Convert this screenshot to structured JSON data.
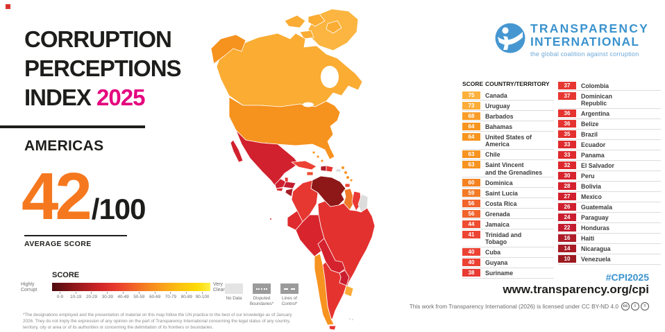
{
  "header": {
    "title_line1": "CORRUPTION",
    "title_line2": "PERCEPTIONS",
    "title_line3": "INDEX",
    "year": "2025",
    "region": "AMERICAS",
    "average_value": "42",
    "average_total": "/100",
    "average_label": "AVERAGE SCORE"
  },
  "legend": {
    "title": "SCORE",
    "left_label": "Highly\nCorrupt",
    "right_label": "Very\nClean",
    "ticks": [
      "0-9",
      "10-19",
      "20-29",
      "30-39",
      "40-49",
      "50-59",
      "60-69",
      "70-79",
      "80-89",
      "90-100"
    ],
    "no_data_label": "No Data",
    "disputed_label": "Disputed\nBoundaries*",
    "lines_label": "Lines of\nControl*"
  },
  "footnote": "*The designations employed and the presentation of material on this map follow the UN practice to the best of our knowledge as of January 2026. They do not imply the expression of any opinion on the part of Transparency International concerning the legal status of any country, territory, city or area or of its authorities or concerning the delimitation of its frontiers or boundaries.",
  "logo": {
    "name_line1": "TRANSPARENCY",
    "name_line2": "INTERNATIONAL",
    "tagline": "the global coalition against corruption"
  },
  "footer": {
    "hashtag": "#CPI2025",
    "url": "www.transparency.org/cpi",
    "license": "This work from Transparency International (2026) is licensed under CC BY-ND 4.0",
    "license_icons": [
      "cc",
      "i",
      "="
    ]
  },
  "table": {
    "score_header": "SCORE",
    "country_header": "COUNTRY/TERRITORY",
    "column1": [
      {
        "score": "75",
        "name": "Canada",
        "color": "#FCB13C"
      },
      {
        "score": "73",
        "name": "Uruguay",
        "color": "#FBAC39"
      },
      {
        "score": "68",
        "name": "Barbados",
        "color": "#F99D28"
      },
      {
        "score": "64",
        "name": "Bahamas",
        "color": "#F8951F"
      },
      {
        "score": "64",
        "name": "United States of\nAmerica",
        "color": "#F8951F"
      },
      {
        "score": "63",
        "name": "Chile",
        "color": "#F79320"
      },
      {
        "score": "63",
        "name": "Saint Vincent\nand the Grenadines",
        "color": "#F79320"
      },
      {
        "score": "60",
        "name": "Dominica",
        "color": "#F58220"
      },
      {
        "score": "59",
        "name": "Saint Lucia",
        "color": "#F37B26"
      },
      {
        "score": "56",
        "name": "Costa Rica",
        "color": "#F1642B"
      },
      {
        "score": "56",
        "name": "Grenada",
        "color": "#F1642B"
      },
      {
        "score": "44",
        "name": "Jamaica",
        "color": "#EE4D31"
      },
      {
        "score": "41",
        "name": "Trinidad and\nTobago",
        "color": "#ED4533"
      },
      {
        "score": "40",
        "name": "Cuba",
        "color": "#EC4234"
      },
      {
        "score": "40",
        "name": "Guyana",
        "color": "#EC4234"
      },
      {
        "score": "38",
        "name": "Suriname",
        "color": "#E93A33"
      }
    ],
    "column2": [
      {
        "score": "37",
        "name": "Colombia",
        "color": "#E73731"
      },
      {
        "score": "37",
        "name": "Dominican\nRepublic",
        "color": "#E73731"
      },
      {
        "score": "36",
        "name": "Argentina",
        "color": "#E53430"
      },
      {
        "score": "36",
        "name": "Belize",
        "color": "#E53430"
      },
      {
        "score": "35",
        "name": "Brazil",
        "color": "#E3312F"
      },
      {
        "score": "33",
        "name": "Ecuador",
        "color": "#DF2B2E"
      },
      {
        "score": "33",
        "name": "Panama",
        "color": "#DF2B2E"
      },
      {
        "score": "32",
        "name": "El Salvador",
        "color": "#DD282D"
      },
      {
        "score": "30",
        "name": "Peru",
        "color": "#D8242D"
      },
      {
        "score": "28",
        "name": "Bolivia",
        "color": "#D4222E"
      },
      {
        "score": "27",
        "name": "Mexico",
        "color": "#D2212E"
      },
      {
        "score": "26",
        "name": "Guatemala",
        "color": "#CF202F"
      },
      {
        "score": "24",
        "name": "Paraguay",
        "color": "#CA1E30"
      },
      {
        "score": "22",
        "name": "Honduras",
        "color": "#C41D30"
      },
      {
        "score": "16",
        "name": "Haiti",
        "color": "#AE1E29"
      },
      {
        "score": "14",
        "name": "Nicaragua",
        "color": "#A81C26"
      },
      {
        "score": "10",
        "name": "Venezuela",
        "color": "#9B1A20"
      }
    ]
  },
  "map": {
    "colors": {
      "greenland": "#FBB540",
      "canada": "#FAAC33",
      "alaska": "#F6921E",
      "usa": "#F6921E",
      "mexico": "#D2212E",
      "guatemala": "#CF202F",
      "belize": "#E53430",
      "el_salvador": "#DD282D",
      "honduras": "#C41D30",
      "nicaragua": "#A81C26",
      "costa_rica": "#F1642B",
      "panama": "#DF2B2E",
      "cuba": "#EC4234",
      "jamaica": "#EE4D31",
      "haiti": "#AE1E29",
      "dominican_republic": "#E73731",
      "puerto_rico": "#DCDCDC",
      "bahamas": "#F8951F",
      "lesser_antilles": "#F79320",
      "barbados": "#F99D28",
      "trinidad_and_tobago": "#ED4533",
      "colombia": "#E73731",
      "venezuela": "#8E1717",
      "guyana": "#EF7B28",
      "suriname": "#E93A33",
      "french_guiana": "#DCDCDC",
      "ecuador": "#DF2B2E",
      "peru": "#D8242D",
      "brazil": "#E3312F",
      "bolivia": "#D4222E",
      "paraguay": "#CA1E30",
      "chile": "#F79320",
      "argentina": "#E53430",
      "uruguay": "#FBAC39",
      "falkland_islands": "#DCDCDC"
    }
  }
}
